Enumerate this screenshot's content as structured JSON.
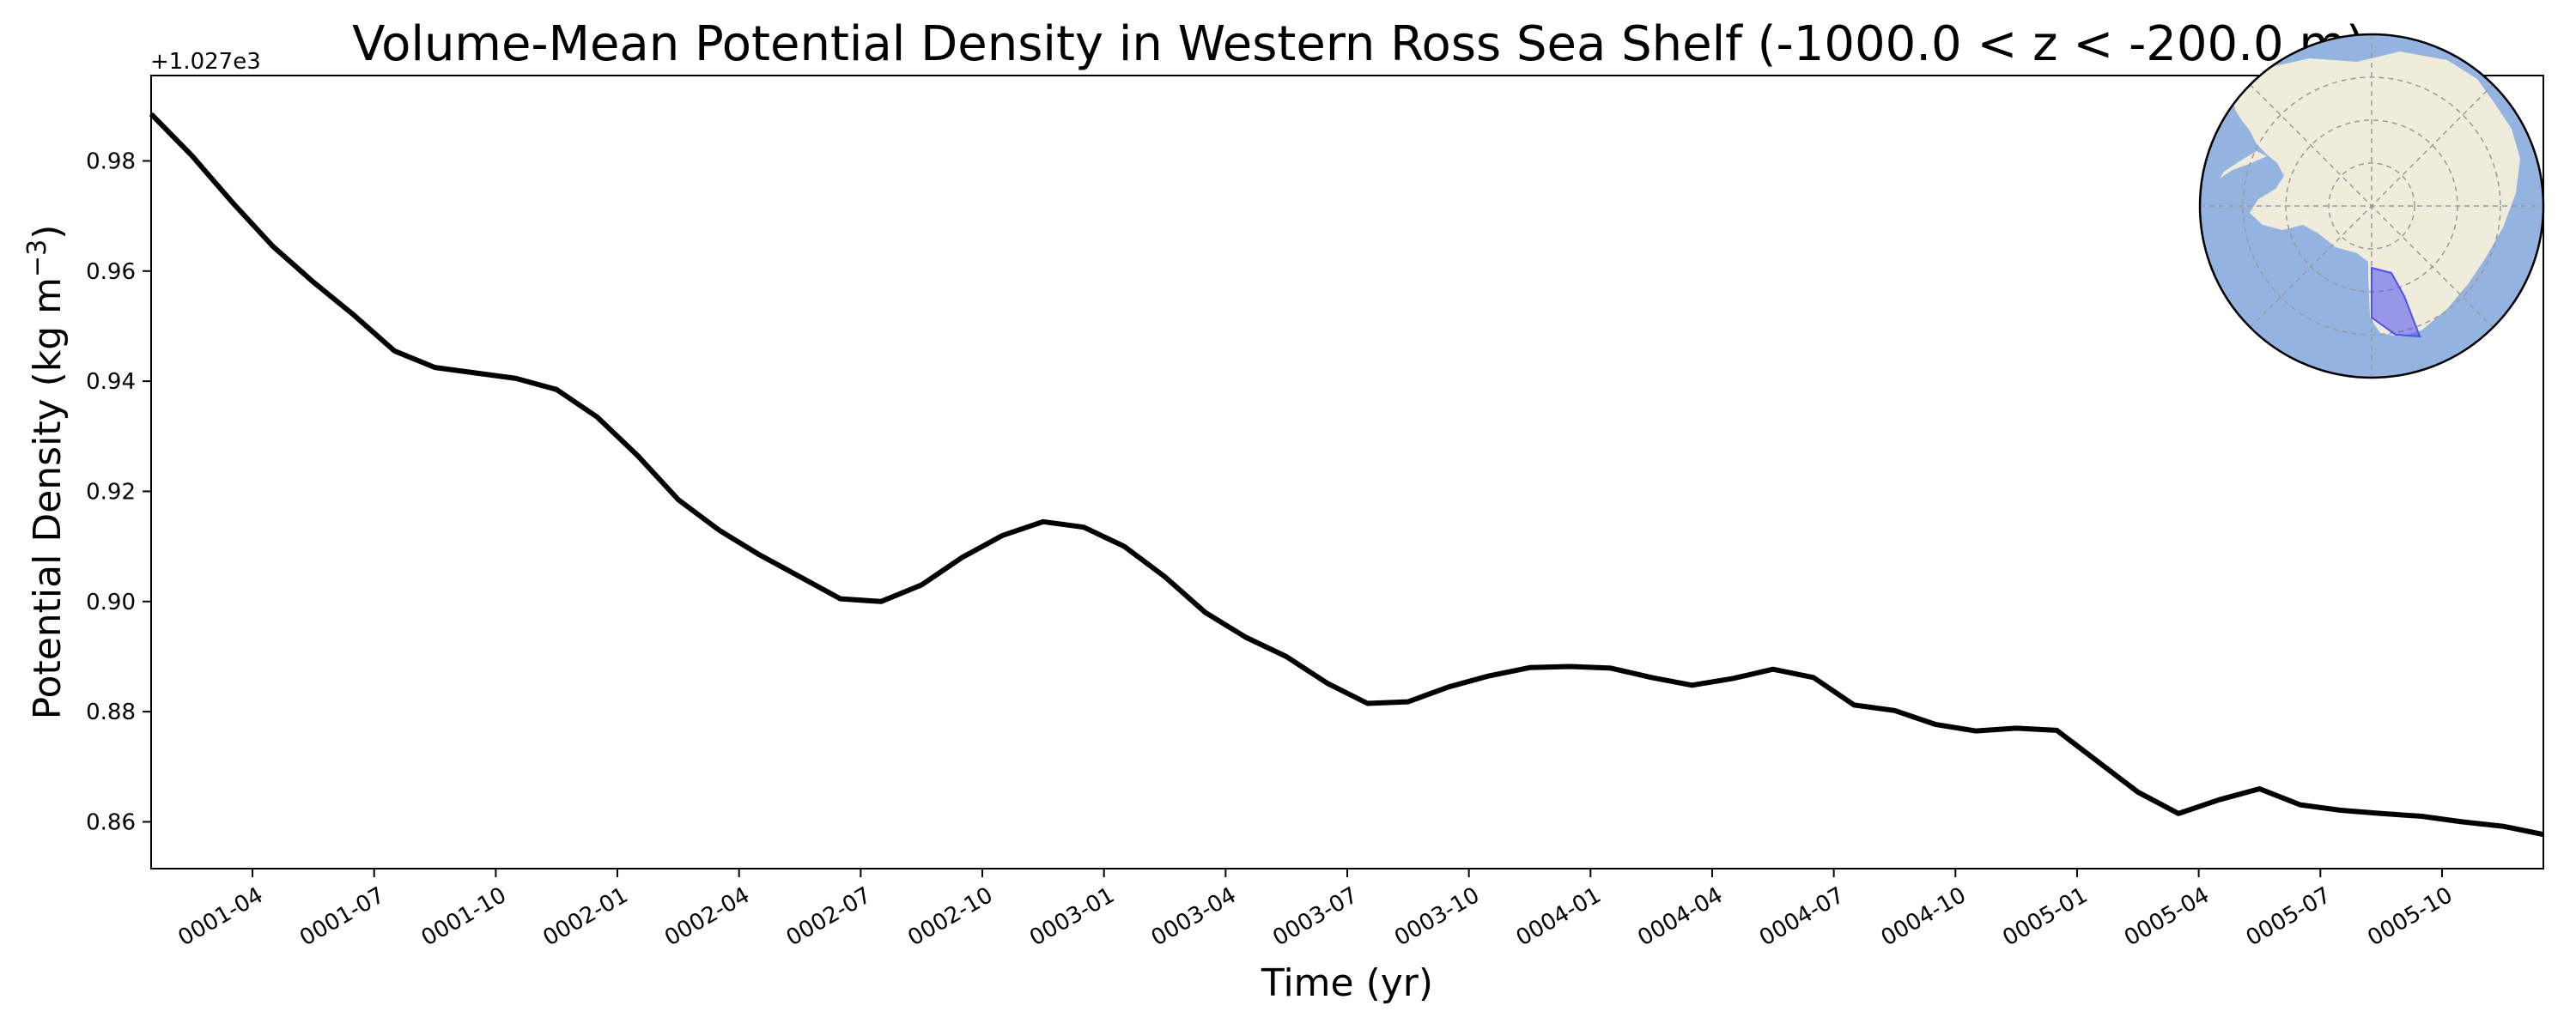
{
  "chart_data": {
    "type": "line",
    "title": "Volume-Mean Potential Density in Western Ross Sea Shelf (-1000.0 < z < -200.0 m)",
    "xlabel": "Time (yr)",
    "ylabel_main": "Potential Density (kg m",
    "ylabel_sup": "−3",
    "ylabel_close": ")",
    "y_offset_label": "+1.027e3",
    "xlim": [
      0.0,
      59.0
    ],
    "ylim": [
      0.8515,
      0.9955
    ],
    "yticks": [
      0.86,
      0.88,
      0.9,
      0.92,
      0.94,
      0.96,
      0.98
    ],
    "ytick_labels": [
      "0.86",
      "0.88",
      "0.90",
      "0.92",
      "0.94",
      "0.96",
      "0.98"
    ],
    "xticks": [
      2.5,
      5.5,
      8.5,
      11.5,
      14.5,
      17.5,
      20.5,
      23.5,
      26.5,
      29.5,
      32.5,
      35.5,
      38.5,
      41.5,
      44.5,
      47.5,
      50.5,
      53.5,
      56.5
    ],
    "xtick_labels": [
      "0001-04",
      "0001-07",
      "0001-10",
      "0002-01",
      "0002-04",
      "0002-07",
      "0002-10",
      "0003-01",
      "0003-04",
      "0003-07",
      "0003-10",
      "0004-01",
      "0004-04",
      "0004-07",
      "0004-10",
      "0005-01",
      "0005-04",
      "0005-07",
      "0005-10"
    ],
    "grid": false,
    "series": [
      {
        "color": "#000000",
        "x": [
          0,
          1,
          2,
          3,
          4,
          5,
          6,
          7,
          8,
          9,
          10,
          11,
          12,
          13,
          14,
          15,
          16,
          17,
          18,
          19,
          20,
          21,
          22,
          23,
          24,
          25,
          26,
          27,
          28,
          29,
          30,
          31,
          32,
          33,
          34,
          35,
          36,
          37,
          38,
          39,
          40,
          41,
          42,
          43,
          44,
          45,
          46,
          47,
          48,
          49,
          50,
          51,
          52,
          53,
          54,
          55,
          56,
          57,
          58,
          59
        ],
        "values": [
          0.9885,
          0.981,
          0.9725,
          0.9645,
          0.958,
          0.952,
          0.9455,
          0.9425,
          0.9415,
          0.9405,
          0.9385,
          0.9335,
          0.9265,
          0.9185,
          0.913,
          0.9085,
          0.9045,
          0.9005,
          0.9,
          0.903,
          0.908,
          0.912,
          0.9145,
          0.9135,
          0.91,
          0.9045,
          0.898,
          0.8935,
          0.89,
          0.8852,
          0.8815,
          0.8818,
          0.8845,
          0.8865,
          0.888,
          0.8882,
          0.8879,
          0.8862,
          0.8848,
          0.886,
          0.8877,
          0.8862,
          0.8812,
          0.8802,
          0.8777,
          0.8765,
          0.877,
          0.8766,
          0.871,
          0.8654,
          0.8615,
          0.864,
          0.866,
          0.8631,
          0.8621,
          0.8615,
          0.861,
          0.86,
          0.8592,
          0.8577
        ]
      }
    ],
    "inset_map": {
      "ocean_color": "#94b3e0",
      "land_color": "#efecdc",
      "region_color": "#5050ee"
    }
  }
}
